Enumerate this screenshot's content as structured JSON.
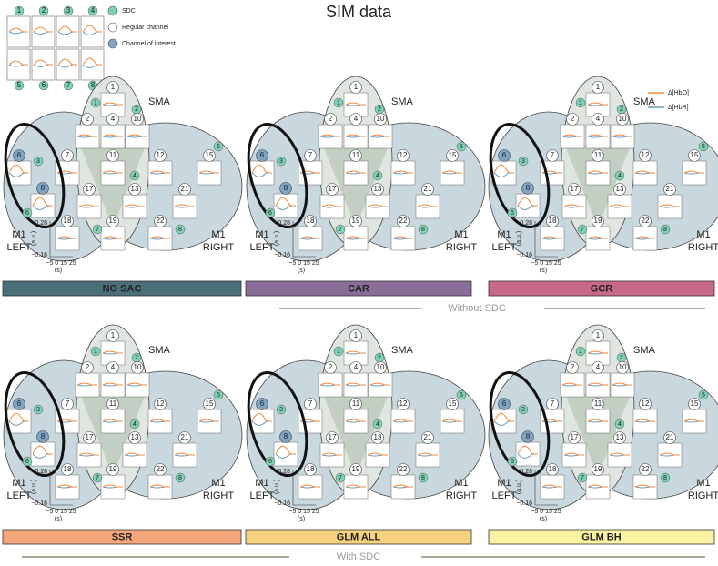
{
  "title": "SIM data",
  "legend": {
    "sdc": "SDC",
    "regular": "Regular channel",
    "interest": "Channel of interest",
    "hbo": "Δ[HbO]",
    "hbr": "Δ[HbR]"
  },
  "key_grid": {
    "sdc_top": [
      "1",
      "2",
      "3",
      "4"
    ],
    "sdc_bottom": [
      "5",
      "6",
      "7",
      "8"
    ]
  },
  "map_labels": {
    "sma": "SMA",
    "m1": "M1",
    "left": "LEFT",
    "right": "RIGHT"
  },
  "axis": {
    "y_top": "0.28",
    "y_bottom": "−0.16",
    "y_unit": "(a.u.)",
    "x_ticks": "−5 0 15 25",
    "x_unit": "(s)"
  },
  "regular_channels": [
    "1",
    "2",
    "4",
    "10",
    "7",
    "11",
    "12",
    "15",
    "17",
    "13",
    "21",
    "18",
    "19",
    "22"
  ],
  "interest_channels": [
    "6",
    "8"
  ],
  "sdc_channels": [
    "1",
    "2",
    "3",
    "4",
    "5",
    "6",
    "7",
    "8"
  ],
  "panels": [
    {
      "label": "NO SAC"
    },
    {
      "label": "CAR"
    },
    {
      "label": "GCR"
    },
    {
      "label": "SSR"
    },
    {
      "label": "GLM ALL"
    },
    {
      "label": "GLM BH"
    }
  ],
  "groups": [
    "Without SDC",
    "With SDC"
  ]
}
